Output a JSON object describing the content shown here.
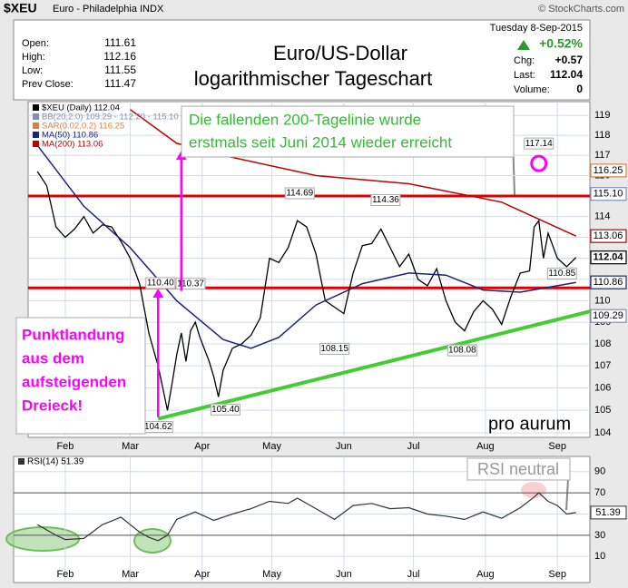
{
  "chart_data": {
    "type": "line",
    "symbol": "$XEU",
    "name": "Euro - Philadelphia INDX",
    "source": "© StockCharts.com",
    "title": "Euro/US-Dollar",
    "subtitle": "logarithmischer Tageschart",
    "quote": {
      "labels": [
        "Open:",
        "High:",
        "Low:",
        "Prev Close:"
      ],
      "values": [
        111.61,
        112.16,
        111.55,
        111.47
      ]
    },
    "date": "Tuesday  8-Sep-2015",
    "change_pct": "+0.52%",
    "stats": {
      "labels": [
        "Chg:",
        "Last:",
        "Volume:"
      ],
      "values": [
        "+0.57",
        "112.04",
        "0"
      ]
    },
    "log_scale": true,
    "grid": true,
    "xlim": [
      16,
      258
    ],
    "xticks": [
      {
        "value": 32,
        "label": "Feb"
      },
      {
        "value": 60,
        "label": "Mar"
      },
      {
        "value": 91,
        "label": "Apr"
      },
      {
        "value": 121,
        "label": "May"
      },
      {
        "value": 152,
        "label": "Jun"
      },
      {
        "value": 182,
        "label": "Jul"
      },
      {
        "value": 213,
        "label": "Aug"
      },
      {
        "value": 244,
        "label": "Sep"
      }
    ],
    "ylim": [
      103.8,
      119.7
    ],
    "yticks": [
      104,
      105,
      106,
      107,
      108,
      109,
      110,
      111,
      112,
      113,
      114,
      115,
      116,
      117,
      118,
      119
    ],
    "series": [
      {
        "name": "$XEU (Daily) 112.04",
        "color": "#000000",
        "x": [
          20,
          24,
          28,
          32,
          36,
          40,
          44,
          48,
          52,
          56,
          60,
          64,
          68,
          72,
          74,
          76,
          78,
          80,
          82,
          84,
          86,
          88,
          90,
          94,
          96,
          98,
          100,
          104,
          108,
          112,
          116,
          120,
          124,
          128,
          132,
          136,
          140,
          144,
          148,
          152,
          156,
          160,
          164,
          168,
          172,
          176,
          180,
          184,
          188,
          192,
          196,
          200,
          204,
          208,
          212,
          216,
          220,
          224,
          228,
          232,
          234,
          236,
          238,
          240,
          244,
          248,
          252
        ],
        "values": [
          116.2,
          115.5,
          113.5,
          113.0,
          113.4,
          114.0,
          113.2,
          113.6,
          113.5,
          112.8,
          112.0,
          110.8,
          108.5,
          107.0,
          106.0,
          105.0,
          106.2,
          107.5,
          108.5,
          107.2,
          108.6,
          109.0,
          108.3,
          107.2,
          106.5,
          105.6,
          106.8,
          107.8,
          108.0,
          108.4,
          109.2,
          112.0,
          111.8,
          112.5,
          113.8,
          113.5,
          112.2,
          110.0,
          109.7,
          109.4,
          111.3,
          112.6,
          112.7,
          113.4,
          112.5,
          111.6,
          112.2,
          111.0,
          110.7,
          111.5,
          110.0,
          109.0,
          108.6,
          109.5,
          110.0,
          109.6,
          108.9,
          110.2,
          111.3,
          111.4,
          113.5,
          113.8,
          112.0,
          113.2,
          112.0,
          111.6,
          112.04
        ]
      },
      {
        "name": "MA(50) 110.86",
        "color": "#1a237e",
        "x": [
          20,
          40,
          60,
          80,
          100,
          112,
          124,
          140,
          160,
          180,
          196,
          212,
          228,
          252
        ],
        "values": [
          117.5,
          114.5,
          112.5,
          110.0,
          108.2,
          107.8,
          108.3,
          109.8,
          110.8,
          111.3,
          111.2,
          110.5,
          110.4,
          110.86
        ]
      },
      {
        "name": "MA(200) 113.06",
        "color": "#c00000",
        "x": [
          60,
          80,
          100,
          140,
          180,
          220,
          252
        ],
        "values": [
          119.3,
          117.6,
          117.0,
          116.0,
          115.6,
          114.7,
          113.06
        ]
      }
    ],
    "indicators": [
      {
        "name": "BB(20,2.0) 109.29 - 112.20 - 115.10",
        "color": "#7f8fb8"
      },
      {
        "name": "SAR(0.02,0.2) 116.25",
        "color": "#e08040"
      }
    ],
    "levels": [
      {
        "value": 115.0,
        "color": "#e00000"
      },
      {
        "value": 110.6,
        "color": "#e00000"
      }
    ],
    "trendline": {
      "x": [
        72,
        258
      ],
      "values": [
        104.62,
        109.5
      ],
      "color": "#44cc33"
    },
    "annotations": {
      "x": [
        236,
        133,
        170,
        73,
        86,
        148,
        203,
        101,
        72,
        246
      ],
      "values": [
        117.14,
        114.69,
        114.36,
        110.4,
        110.37,
        108.15,
        108.08,
        105.4,
        104.62,
        110.85
      ],
      "labels": [
        "117.14",
        "114.69",
        "114.36",
        "110.40",
        "110.37",
        "108.15",
        "108.08",
        "105.40",
        "104.62",
        "110.85"
      ]
    },
    "price_tags": [
      {
        "value": 116.25,
        "label": "116.25",
        "color": "#e08040"
      },
      {
        "value": 115.1,
        "label": "115.10",
        "color": "#7f8fb8"
      },
      {
        "value": 113.06,
        "label": "113.06",
        "color": "#c00000"
      },
      {
        "value": 112.04,
        "label": "112.04",
        "color": "#000000"
      },
      {
        "value": 110.86,
        "label": "110.86",
        "color": "#1a237e"
      },
      {
        "value": 109.29,
        "label": "109.29",
        "color": "#7f8fb8"
      }
    ],
    "note_top": [
      "Die fallenden 200-Tagelinie wurde",
      "erstmals seit Juni 2014 wieder erreicht"
    ],
    "note_left": [
      "Punktlandung",
      "aus dem",
      "aufsteigenden",
      "Dreieck!"
    ],
    "logo": "pro aurum",
    "rsi": {
      "legend": "RSI(14) 51.39",
      "note": "RSI neutral",
      "ylim": [
        0,
        100
      ],
      "yticks": [
        10,
        30,
        50,
        70,
        90
      ],
      "last": {
        "value": 51.39,
        "label": "51.39"
      },
      "x": [
        20,
        28,
        32,
        40,
        48,
        56,
        60,
        64,
        68,
        72,
        76,
        80,
        88,
        96,
        104,
        112,
        120,
        128,
        132,
        140,
        148,
        156,
        164,
        172,
        180,
        188,
        196,
        204,
        212,
        220,
        228,
        234,
        236,
        240,
        244,
        248,
        252
      ],
      "values": [
        40,
        30,
        26,
        27,
        40,
        47,
        40,
        33,
        28,
        25,
        30,
        45,
        52,
        44,
        50,
        55,
        62,
        60,
        65,
        55,
        45,
        58,
        60,
        55,
        56,
        50,
        48,
        45,
        52,
        46,
        56,
        66,
        70,
        62,
        58,
        50,
        51.39
      ],
      "color": "#333333"
    }
  }
}
